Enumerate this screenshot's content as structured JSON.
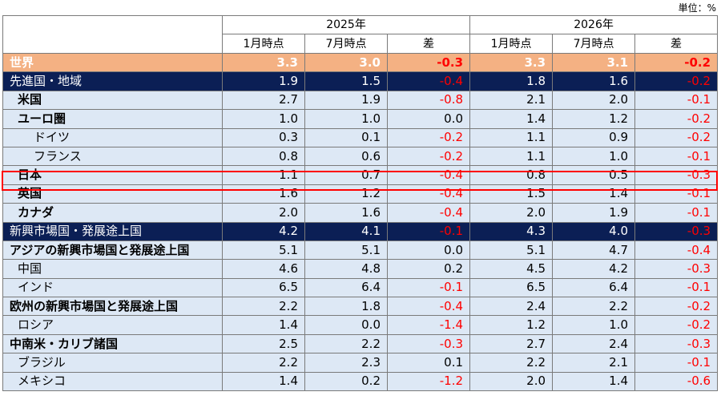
{
  "unit_label": "単位：%",
  "header": {
    "years": [
      "2025年",
      "2026年"
    ],
    "subs": [
      "1月時点",
      "7月時点",
      "差",
      "1月時点",
      "7月時点",
      "差"
    ]
  },
  "rows": [
    {
      "label": "世界",
      "style": "world",
      "indent": 0,
      "values": [
        "3.3",
        "3.0",
        "-0.3",
        "3.3",
        "3.1",
        "-0.2"
      ]
    },
    {
      "label": "先進国・地域",
      "style": "group",
      "indent": 0,
      "values": [
        "1.9",
        "1.5",
        "-0.4",
        "1.8",
        "1.6",
        "-0.2"
      ]
    },
    {
      "label": "米国",
      "style": "bold",
      "indent": 1,
      "values": [
        "2.7",
        "1.9",
        "-0.8",
        "2.1",
        "2.0",
        "-0.1"
      ]
    },
    {
      "label": "ユーロ圏",
      "style": "bold",
      "indent": 1,
      "values": [
        "1.0",
        "1.0",
        "0.0",
        "1.4",
        "1.2",
        "-0.2"
      ]
    },
    {
      "label": "ドイツ",
      "style": "plain",
      "indent": 2,
      "values": [
        "0.3",
        "0.1",
        "-0.2",
        "1.1",
        "0.9",
        "-0.2"
      ]
    },
    {
      "label": "フランス",
      "style": "plain",
      "indent": 2,
      "values": [
        "0.8",
        "0.6",
        "-0.2",
        "1.1",
        "1.0",
        "-0.1"
      ]
    },
    {
      "label": "日本",
      "style": "bold",
      "indent": 1,
      "highlight": true,
      "values": [
        "1.1",
        "0.7",
        "-0.4",
        "0.8",
        "0.5",
        "-0.3"
      ]
    },
    {
      "label": "英国",
      "style": "bold",
      "indent": 1,
      "values": [
        "1.6",
        "1.2",
        "-0.4",
        "1.5",
        "1.4",
        "-0.1"
      ]
    },
    {
      "label": "カナダ",
      "style": "bold",
      "indent": 1,
      "values": [
        "2.0",
        "1.6",
        "-0.4",
        "2.0",
        "1.9",
        "-0.1"
      ]
    },
    {
      "label": "新興市場国・発展途上国",
      "style": "group",
      "indent": 0,
      "values": [
        "4.2",
        "4.1",
        "-0.1",
        "4.3",
        "4.0",
        "-0.3"
      ]
    },
    {
      "label": "アジアの新興市場国と発展途上国",
      "style": "bold",
      "indent": 0,
      "values": [
        "5.1",
        "5.1",
        "0.0",
        "5.1",
        "4.7",
        "-0.4"
      ]
    },
    {
      "label": "中国",
      "style": "plain",
      "indent": 1,
      "values": [
        "4.6",
        "4.8",
        "0.2",
        "4.5",
        "4.2",
        "-0.3"
      ]
    },
    {
      "label": "インド",
      "style": "plain",
      "indent": 1,
      "values": [
        "6.5",
        "6.4",
        "-0.1",
        "6.5",
        "6.4",
        "-0.1"
      ]
    },
    {
      "label": "欧州の新興市場国と発展途上国",
      "style": "bold",
      "indent": 0,
      "values": [
        "2.2",
        "1.8",
        "-0.4",
        "2.4",
        "2.2",
        "-0.2"
      ]
    },
    {
      "label": "ロシア",
      "style": "plain",
      "indent": 1,
      "values": [
        "1.4",
        "0.0",
        "-1.4",
        "1.2",
        "1.0",
        "-0.2"
      ]
    },
    {
      "label": "中南米・カリブ諸国",
      "style": "bold",
      "indent": 0,
      "values": [
        "2.5",
        "2.2",
        "-0.3",
        "2.7",
        "2.4",
        "-0.3"
      ]
    },
    {
      "label": "ブラジル",
      "style": "plain",
      "indent": 1,
      "values": [
        "2.2",
        "2.3",
        "0.1",
        "2.2",
        "2.1",
        "-0.1"
      ]
    },
    {
      "label": "メキシコ",
      "style": "plain",
      "indent": 1,
      "values": [
        "1.4",
        "0.2",
        "-1.2",
        "2.0",
        "1.4",
        "-0.6"
      ]
    }
  ]
}
